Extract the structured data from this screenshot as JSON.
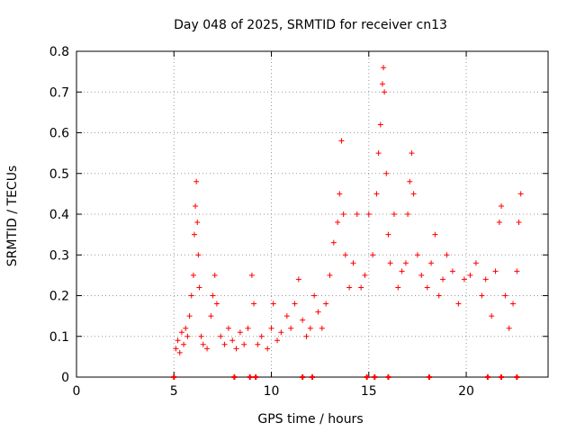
{
  "chart_data": {
    "type": "scatter",
    "title": "Day 048 of 2025, SRMTID for receiver cn13",
    "xlabel": "GPS time / hours",
    "ylabel": "SRMTID / TECUs",
    "xlim": [
      0,
      24.2
    ],
    "ylim": [
      0,
      0.8
    ],
    "xticks": [
      0,
      5,
      10,
      15,
      20
    ],
    "yticks": [
      0,
      0.1,
      0.2,
      0.3,
      0.4,
      0.5,
      0.6,
      0.7,
      0.8
    ],
    "grid": true,
    "marker": "+",
    "series": [
      {
        "name": "SRMTID",
        "color": "#ff0000",
        "points": [
          [
            5.1,
            0.07
          ],
          [
            5.2,
            0.09
          ],
          [
            5.3,
            0.06
          ],
          [
            5.4,
            0.11
          ],
          [
            5.5,
            0.08
          ],
          [
            5.6,
            0.12
          ],
          [
            5.7,
            0.1
          ],
          [
            5.8,
            0.15
          ],
          [
            5.9,
            0.2
          ],
          [
            6.0,
            0.25
          ],
          [
            6.05,
            0.35
          ],
          [
            6.1,
            0.42
          ],
          [
            6.15,
            0.48
          ],
          [
            6.2,
            0.38
          ],
          [
            6.25,
            0.3
          ],
          [
            6.3,
            0.22
          ],
          [
            6.4,
            0.1
          ],
          [
            6.5,
            0.08
          ],
          [
            6.7,
            0.07
          ],
          [
            6.9,
            0.15
          ],
          [
            7.0,
            0.2
          ],
          [
            7.1,
            0.25
          ],
          [
            7.2,
            0.18
          ],
          [
            7.4,
            0.1
          ],
          [
            7.6,
            0.08
          ],
          [
            7.8,
            0.12
          ],
          [
            8.0,
            0.09
          ],
          [
            8.2,
            0.07
          ],
          [
            8.4,
            0.11
          ],
          [
            8.6,
            0.08
          ],
          [
            8.8,
            0.12
          ],
          [
            9.0,
            0.25
          ],
          [
            9.1,
            0.18
          ],
          [
            9.3,
            0.08
          ],
          [
            9.5,
            0.1
          ],
          [
            9.8,
            0.07
          ],
          [
            10.0,
            0.12
          ],
          [
            10.1,
            0.18
          ],
          [
            10.3,
            0.09
          ],
          [
            10.5,
            0.11
          ],
          [
            10.8,
            0.15
          ],
          [
            11.0,
            0.12
          ],
          [
            11.2,
            0.18
          ],
          [
            11.4,
            0.24
          ],
          [
            11.6,
            0.14
          ],
          [
            11.8,
            0.1
          ],
          [
            12.0,
            0.12
          ],
          [
            12.2,
            0.2
          ],
          [
            12.4,
            0.16
          ],
          [
            12.6,
            0.12
          ],
          [
            12.8,
            0.18
          ],
          [
            13.0,
            0.25
          ],
          [
            13.2,
            0.33
          ],
          [
            13.4,
            0.38
          ],
          [
            13.5,
            0.45
          ],
          [
            13.6,
            0.58
          ],
          [
            13.7,
            0.4
          ],
          [
            13.8,
            0.3
          ],
          [
            14.0,
            0.22
          ],
          [
            14.2,
            0.28
          ],
          [
            14.4,
            0.4
          ],
          [
            14.6,
            0.22
          ],
          [
            14.8,
            0.25
          ],
          [
            15.0,
            0.4
          ],
          [
            15.2,
            0.3
          ],
          [
            15.4,
            0.45
          ],
          [
            15.5,
            0.55
          ],
          [
            15.6,
            0.62
          ],
          [
            15.7,
            0.72
          ],
          [
            15.75,
            0.76
          ],
          [
            15.8,
            0.7
          ],
          [
            15.9,
            0.5
          ],
          [
            16.0,
            0.35
          ],
          [
            16.1,
            0.28
          ],
          [
            16.3,
            0.4
          ],
          [
            16.5,
            0.22
          ],
          [
            16.7,
            0.26
          ],
          [
            16.9,
            0.28
          ],
          [
            17.0,
            0.4
          ],
          [
            17.1,
            0.48
          ],
          [
            17.2,
            0.55
          ],
          [
            17.3,
            0.45
          ],
          [
            17.5,
            0.3
          ],
          [
            17.7,
            0.25
          ],
          [
            18.0,
            0.22
          ],
          [
            18.2,
            0.28
          ],
          [
            18.4,
            0.35
          ],
          [
            18.6,
            0.2
          ],
          [
            18.8,
            0.24
          ],
          [
            19.0,
            0.3
          ],
          [
            19.3,
            0.26
          ],
          [
            19.6,
            0.18
          ],
          [
            19.9,
            0.24
          ],
          [
            20.2,
            0.25
          ],
          [
            20.5,
            0.28
          ],
          [
            20.8,
            0.2
          ],
          [
            21.0,
            0.24
          ],
          [
            21.3,
            0.15
          ],
          [
            21.5,
            0.26
          ],
          [
            21.7,
            0.38
          ],
          [
            21.8,
            0.42
          ],
          [
            22.0,
            0.2
          ],
          [
            22.2,
            0.12
          ],
          [
            22.4,
            0.18
          ],
          [
            22.6,
            0.26
          ],
          [
            22.7,
            0.38
          ],
          [
            22.8,
            0.45
          ]
        ]
      }
    ],
    "baseline_markers_x": [
      5.0,
      8.1,
      8.9,
      9.2,
      11.6,
      12.1,
      14.9,
      15.3,
      16.0,
      18.1,
      21.1,
      21.8,
      22.6
    ]
  }
}
